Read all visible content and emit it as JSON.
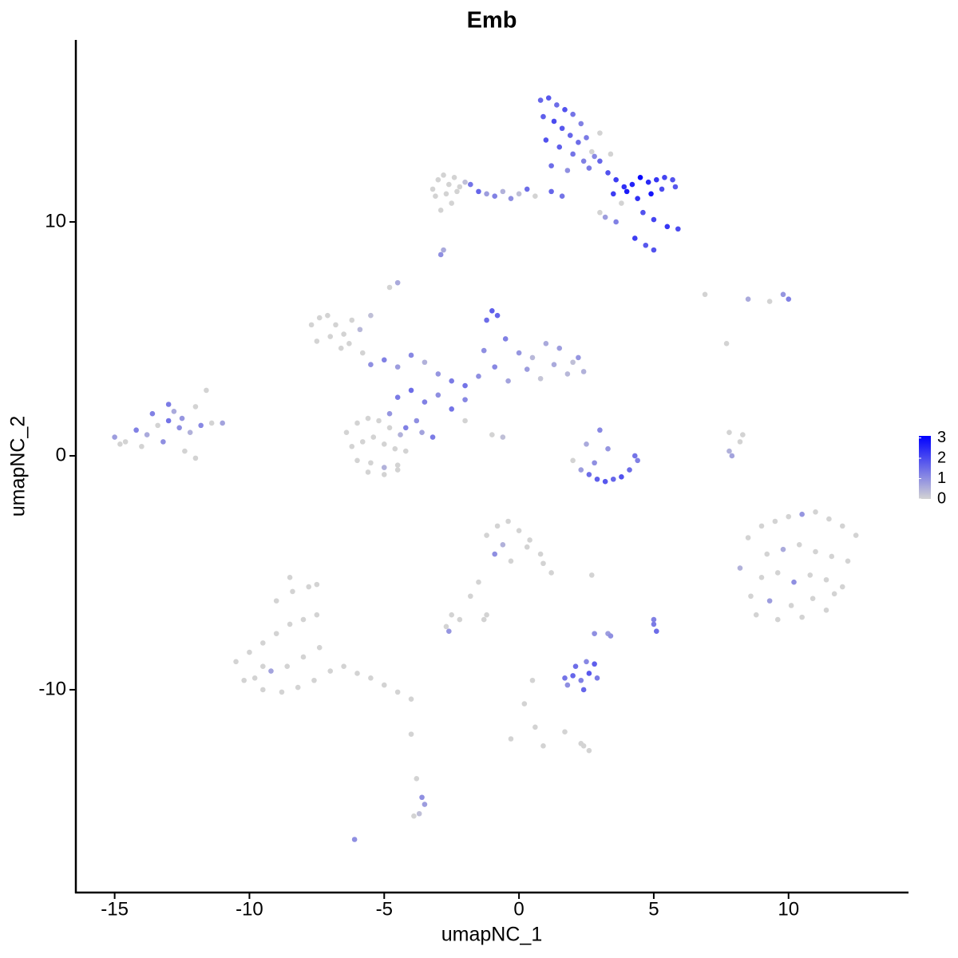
{
  "chart_data": {
    "type": "scatter",
    "title": "Emb",
    "x_label": "umapNC_1",
    "y_label": "umapNC_2",
    "xlim": [
      -16.44,
      14.45
    ],
    "ylim": [
      -18.67,
      17.78
    ],
    "xticks": [
      -15,
      -10,
      -5,
      0,
      5,
      10
    ],
    "yticks": [
      -10,
      0,
      10
    ],
    "color_lim": [
      0,
      3.1
    ],
    "color_ticks": [
      0,
      1,
      2,
      3
    ],
    "low_color": "#d3d3d3",
    "high_color": "#0000ff",
    "x": [
      0.8,
      1.1,
      1.4,
      1.7,
      2.0,
      2.3,
      0.9,
      1.3,
      1.6,
      1.9,
      2.2,
      2.5,
      1.0,
      1.5,
      2.0,
      2.4,
      2.8,
      1.2,
      1.8,
      2.6,
      3.0,
      3.3,
      3.6,
      3.9,
      4.2,
      4.5,
      4.8,
      5.1,
      5.4,
      5.7,
      3.5,
      4.0,
      4.4,
      4.9,
      5.3,
      5.8,
      4.6,
      5.0,
      5.5,
      5.9,
      4.3,
      4.7,
      5.0,
      1.2,
      1.6,
      3.0,
      3.4,
      2.7,
      3.8,
      -3.2,
      -3.0,
      -2.8,
      -2.6,
      -2.4,
      -2.2,
      -2.0,
      -3.1,
      -2.7,
      -2.3,
      -1.8,
      -1.5,
      -1.2,
      -0.9,
      -0.6,
      -0.3,
      0.0,
      0.3,
      0.6,
      -2.9,
      -2.5,
      3.2,
      3.6,
      3.0,
      -2.9,
      -2.8,
      -7.7,
      -7.4,
      -7.1,
      -6.8,
      -6.5,
      -6.2,
      -5.9,
      -7.5,
      -7.0,
      -6.6,
      -6.3,
      -5.8,
      -5.5,
      -4.8,
      -4.5,
      -5.5,
      -5.0,
      -4.5,
      -4.0,
      -3.5,
      -3.0,
      -2.5,
      -2.0,
      -1.5,
      -1.2,
      -1.0,
      -0.8,
      -0.5,
      0.0,
      0.5,
      1.0,
      1.5,
      2.0,
      2.4,
      -1.3,
      -0.9,
      -0.4,
      0.3,
      0.8,
      1.3,
      1.8,
      2.2,
      -4.5,
      -4.0,
      -3.5,
      -3.0,
      -2.5,
      -2.0,
      -4.8,
      -4.2,
      -3.8,
      -3.2,
      -3.6,
      -2.0,
      -1.0,
      -0.6,
      -6.4,
      -6.0,
      -5.6,
      -5.2,
      -4.8,
      -4.4,
      -6.2,
      -5.8,
      -5.4,
      -5.0,
      -4.6,
      -4.2,
      -6.0,
      -5.5,
      -5.0,
      -4.5,
      -5.6,
      -5.0,
      -4.5,
      -15.0,
      -14.6,
      -14.2,
      -13.8,
      -13.4,
      -13.0,
      -12.6,
      -12.2,
      -11.8,
      -11.4,
      -11.0,
      -14.8,
      -14.0,
      -13.2,
      -12.4,
      -12.0,
      -13.6,
      -12.8,
      -12.0,
      -11.6,
      -13.0,
      -12.5,
      2.0,
      2.3,
      2.6,
      2.9,
      3.2,
      3.5,
      3.8,
      4.1,
      4.4,
      2.5,
      3.0,
      3.3,
      4.3,
      2.8,
      8.5,
      9.0,
      9.5,
      10.0,
      10.5,
      11.0,
      11.5,
      12.0,
      12.5,
      9.2,
      9.8,
      10.4,
      11.0,
      11.6,
      12.2,
      9.0,
      9.6,
      10.2,
      10.8,
      11.4,
      12.0,
      8.6,
      9.3,
      10.1,
      10.9,
      11.7,
      8.8,
      9.6,
      10.5,
      11.4,
      8.2,
      7.8,
      -10.5,
      -10.0,
      -9.5,
      -9.0,
      -8.5,
      -8.0,
      -7.5,
      -9.8,
      -9.2,
      -8.6,
      -8.0,
      -7.4,
      -9.0,
      -8.4,
      -7.8,
      -9.5,
      -8.8,
      -8.2,
      -7.6,
      -7.0,
      -6.5,
      -6.0,
      -5.5,
      -5.0,
      -4.5,
      -4.0,
      -8.5,
      -7.5,
      -9.5,
      -10.2,
      -1.2,
      -0.8,
      -0.4,
      0.0,
      0.4,
      0.8,
      1.2,
      -0.9,
      -0.3,
      0.3,
      -0.6,
      0.9,
      -1.5,
      -1.8,
      -1.2,
      -2.5,
      -2.2,
      -1.3,
      0.5,
      0.2,
      0.6,
      0.9,
      2.7,
      2.8,
      1.7,
      2.0,
      2.3,
      2.6,
      2.9,
      2.1,
      2.5,
      2.8,
      1.8,
      2.4,
      3.3,
      3.4,
      5.0,
      5.1,
      5.0,
      2.3,
      2.6,
      2.4,
      -3.8,
      -3.6,
      -3.5,
      -3.7,
      -3.9,
      -6.1,
      -2.7,
      -4.0,
      -0.3,
      1.7,
      7.9,
      8.2,
      8.3,
      7.8,
      6.9,
      7.7,
      8.5,
      9.3,
      9.8,
      10.0,
      -2.6
    ],
    "y": [
      15.2,
      15.3,
      15.0,
      14.8,
      14.6,
      14.2,
      14.5,
      14.3,
      14.0,
      13.7,
      13.4,
      13.6,
      13.5,
      13.2,
      12.9,
      12.6,
      12.8,
      12.4,
      12.2,
      12.3,
      12.6,
      12.1,
      11.8,
      11.5,
      11.6,
      11.9,
      11.7,
      11.8,
      11.9,
      11.8,
      11.2,
      11.3,
      11.0,
      11.2,
      11.4,
      11.5,
      10.4,
      10.1,
      9.8,
      9.7,
      9.3,
      9.0,
      8.8,
      11.3,
      11.1,
      13.8,
      12.9,
      13.0,
      10.8,
      11.4,
      11.8,
      12.0,
      11.6,
      11.9,
      11.5,
      11.7,
      11.1,
      11.2,
      11.3,
      11.6,
      11.3,
      11.2,
      11.1,
      11.3,
      11.0,
      11.2,
      11.4,
      11.1,
      10.5,
      10.8,
      10.2,
      10.0,
      10.4,
      8.6,
      8.8,
      5.6,
      5.9,
      6.0,
      5.6,
      5.2,
      5.8,
      5.4,
      4.9,
      5.1,
      4.6,
      4.8,
      4.4,
      6.0,
      7.2,
      7.4,
      3.9,
      4.1,
      3.8,
      4.3,
      4.0,
      3.5,
      3.2,
      3.0,
      3.4,
      5.8,
      6.2,
      6.0,
      5.0,
      4.4,
      4.2,
      4.8,
      4.6,
      4.0,
      3.6,
      4.5,
      3.8,
      3.2,
      3.7,
      3.3,
      3.9,
      3.5,
      4.2,
      2.5,
      2.8,
      2.3,
      2.6,
      2.0,
      2.4,
      1.8,
      1.2,
      1.5,
      0.8,
      1.0,
      1.5,
      0.9,
      0.8,
      1.0,
      1.4,
      1.6,
      1.5,
      1.2,
      0.9,
      0.4,
      0.6,
      0.8,
      0.5,
      0.3,
      0.2,
      -0.2,
      -0.3,
      -0.5,
      -0.4,
      -0.7,
      -0.8,
      -0.6,
      0.8,
      0.6,
      1.1,
      0.9,
      1.3,
      1.5,
      1.2,
      1.0,
      1.3,
      1.4,
      1.4,
      0.5,
      0.4,
      0.6,
      0.2,
      -0.1,
      1.8,
      1.9,
      2.1,
      2.8,
      2.2,
      1.6,
      -0.2,
      -0.6,
      -0.8,
      -1.0,
      -1.1,
      -1.0,
      -0.9,
      -0.6,
      -0.2,
      0.5,
      1.1,
      0.3,
      0.0,
      -0.3,
      -3.5,
      -3.0,
      -2.8,
      -2.6,
      -2.5,
      -2.4,
      -2.7,
      -3.0,
      -3.4,
      -4.2,
      -4.0,
      -3.8,
      -4.1,
      -4.3,
      -4.5,
      -5.2,
      -5.0,
      -5.4,
      -5.1,
      -5.3,
      -5.6,
      -6.0,
      -6.2,
      -6.4,
      -6.1,
      -5.9,
      -6.8,
      -7.0,
      -6.9,
      -6.6,
      -4.8,
      0.2,
      -8.8,
      -8.4,
      -8.0,
      -7.6,
      -7.2,
      -7.0,
      -6.8,
      -9.5,
      -9.2,
      -9.0,
      -8.6,
      -8.2,
      -6.2,
      -5.8,
      -5.6,
      -10.0,
      -10.1,
      -9.9,
      -9.6,
      -9.2,
      -9.0,
      -9.3,
      -9.5,
      -9.8,
      -10.1,
      -10.4,
      -5.2,
      -5.5,
      -9.0,
      -9.6,
      -3.4,
      -3.0,
      -2.8,
      -3.2,
      -3.6,
      -4.2,
      -5.0,
      -4.2,
      -4.5,
      -3.9,
      -3.8,
      -4.6,
      -5.4,
      -6.0,
      -6.8,
      -6.8,
      -7.0,
      -7.0,
      -9.6,
      -10.6,
      -11.6,
      -12.4,
      -5.1,
      -7.6,
      -9.5,
      -9.4,
      -9.6,
      -9.3,
      -9.5,
      -9.0,
      -8.8,
      -8.9,
      -9.8,
      -10.0,
      -7.6,
      -7.7,
      -7.2,
      -7.5,
      -7.0,
      -12.3,
      -12.6,
      -12.4,
      -13.8,
      -14.6,
      -14.9,
      -15.3,
      -15.4,
      -16.4,
      -7.3,
      -11.9,
      -12.1,
      -11.8,
      0.0,
      0.6,
      0.9,
      1.0,
      6.9,
      4.8,
      6.7,
      6.6,
      6.9,
      6.7,
      -7.5
    ],
    "values": [
      1.6,
      1.8,
      1.5,
      1.9,
      1.4,
      1.2,
      1.7,
      2.0,
      1.8,
      1.6,
      1.5,
      1.3,
      1.9,
      1.7,
      1.4,
      1.2,
      1.1,
      1.5,
      1.0,
      1.3,
      1.6,
      1.9,
      2.2,
      2.4,
      2.6,
      3.0,
      2.5,
      2.3,
      2.1,
      1.9,
      2.2,
      2.7,
      2.4,
      2.8,
      2.0,
      1.8,
      1.9,
      2.1,
      2.3,
      2.0,
      2.2,
      1.8,
      1.9,
      1.6,
      1.4,
      0,
      0,
      0,
      0,
      0,
      0,
      0,
      0,
      0,
      0,
      0.3,
      0,
      0,
      0,
      1.4,
      1.6,
      0.8,
      1.2,
      0.5,
      1.0,
      0.3,
      1.5,
      0,
      0,
      0,
      0.8,
      1.2,
      0,
      1.0,
      0.6,
      0,
      0,
      0,
      0,
      0,
      0,
      0.4,
      0,
      0,
      0,
      0,
      0,
      0.3,
      0,
      0.6,
      1.0,
      1.2,
      0.8,
      1.1,
      0.5,
      0.9,
      1.3,
      1.4,
      1.0,
      1.5,
      1.7,
      1.6,
      1.2,
      0.9,
      0.4,
      0.6,
      0.8,
      0.3,
      0.5,
      1.0,
      1.1,
      0.7,
      0.8,
      0.2,
      0.6,
      0.4,
      0.9,
      1.3,
      1.5,
      1.2,
      1.0,
      1.4,
      1.1,
      0.9,
      1.2,
      1.0,
      1.3,
      0.7,
      0,
      0,
      0.3,
      0,
      0,
      0,
      0,
      0,
      0.5,
      0,
      0,
      0,
      0,
      0,
      0,
      0,
      0,
      0.5,
      0,
      0,
      0,
      0,
      0.8,
      0,
      1.2,
      0.6,
      0,
      1.4,
      1.0,
      0.5,
      1.1,
      0,
      0.7,
      0,
      0,
      1.0,
      0,
      0,
      1.2,
      0.6,
      0,
      0,
      1.3,
      0.9,
      0,
      0.8,
      1.5,
      1.7,
      1.8,
      1.6,
      1.9,
      1.5,
      1.2,
      0.6,
      1.1,
      0.9,
      1.4,
      1.0,
      0,
      0,
      0,
      0,
      0.9,
      0,
      0,
      0,
      0,
      0,
      0.6,
      0,
      0,
      0,
      0,
      0,
      0,
      1.0,
      0,
      0,
      0,
      0,
      0.8,
      0,
      0,
      0,
      0,
      0,
      0,
      0,
      0.5,
      0.5,
      0,
      0,
      0,
      0,
      0,
      0,
      0,
      0,
      0.7,
      0,
      0,
      0,
      0,
      0,
      0,
      0,
      0,
      0,
      0,
      0,
      0,
      0,
      0,
      0,
      0,
      0,
      0,
      0,
      0,
      0,
      0,
      0,
      0,
      0,
      0,
      0,
      0,
      1.0,
      0,
      0,
      0.5,
      0,
      0,
      0,
      0,
      0,
      0,
      0,
      0,
      0,
      0,
      0,
      0,
      1.0,
      1.4,
      1.6,
      1.2,
      1.8,
      1.3,
      1.5,
      1.1,
      1.7,
      1.0,
      1.6,
      0.8,
      1.0,
      1.3,
      1.5,
      1.2,
      0,
      0,
      0,
      0,
      1.0,
      0.8,
      0.3,
      0,
      1.0,
      0,
      0,
      0,
      0,
      0.7,
      0,
      0,
      0,
      0,
      0,
      0.6,
      0,
      0.9,
      1.2,
      0.9
    ]
  }
}
